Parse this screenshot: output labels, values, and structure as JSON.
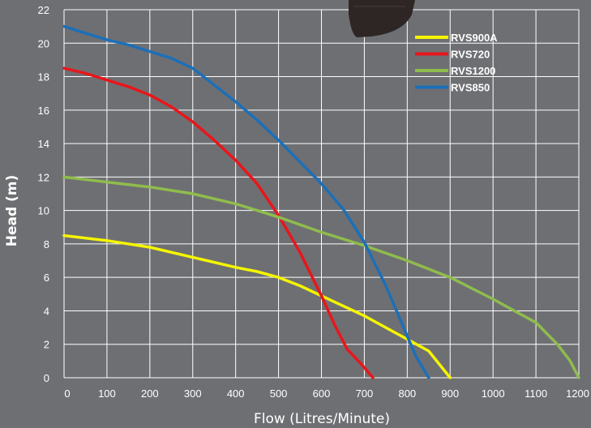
{
  "chart_data": {
    "type": "line",
    "title": "",
    "xlabel": "Flow (Litres/Minute)",
    "ylabel": "Head (m)",
    "xlim": [
      0,
      1200
    ],
    "ylim": [
      0,
      22
    ],
    "x_ticks": [
      0,
      100,
      200,
      300,
      400,
      500,
      600,
      700,
      800,
      900,
      1000,
      1100,
      1200
    ],
    "y_ticks": [
      0,
      2,
      4,
      6,
      8,
      10,
      12,
      14,
      16,
      18,
      20,
      22
    ],
    "grid": true,
    "legend_position": "top-right",
    "series": [
      {
        "name": "RVS900A",
        "color": "#f5f500",
        "x": [
          0,
          100,
          200,
          300,
          400,
          450,
          500,
          550,
          600,
          650,
          700,
          750,
          800,
          850,
          900
        ],
        "y": [
          8.5,
          8.2,
          7.8,
          7.2,
          6.6,
          6.35,
          6.0,
          5.5,
          4.9,
          4.3,
          3.7,
          3.0,
          2.3,
          1.6,
          0
        ]
      },
      {
        "name": "RVS720",
        "color": "#e8161b",
        "x": [
          0,
          50,
          100,
          150,
          200,
          250,
          300,
          350,
          400,
          450,
          500,
          550,
          600,
          630,
          660,
          690,
          720
        ],
        "y": [
          18.5,
          18.2,
          17.8,
          17.4,
          16.9,
          16.2,
          15.3,
          14.2,
          13.0,
          11.6,
          9.7,
          7.5,
          4.9,
          3.2,
          1.7,
          0.9,
          0
        ]
      },
      {
        "name": "RVS1200",
        "color": "#8fbc4d",
        "x": [
          0,
          100,
          200,
          300,
          400,
          450,
          500,
          600,
          700,
          800,
          900,
          1000,
          1050,
          1100,
          1150,
          1180,
          1200
        ],
        "y": [
          12,
          11.7,
          11.4,
          11.0,
          10.4,
          10.0,
          9.6,
          8.7,
          7.9,
          7.0,
          6.0,
          4.7,
          4.0,
          3.3,
          2.0,
          1.0,
          0
        ]
      },
      {
        "name": "RVS850",
        "color": "#1c6fb8",
        "x": [
          0,
          50,
          100,
          150,
          200,
          250,
          300,
          350,
          400,
          450,
          500,
          550,
          600,
          650,
          700,
          750,
          800,
          820,
          850
        ],
        "y": [
          21,
          20.6,
          20.2,
          19.9,
          19.5,
          19.1,
          18.5,
          17.5,
          16.5,
          15.4,
          14.2,
          12.9,
          11.6,
          10.1,
          8.1,
          5.5,
          2.5,
          1.3,
          0
        ]
      }
    ]
  }
}
